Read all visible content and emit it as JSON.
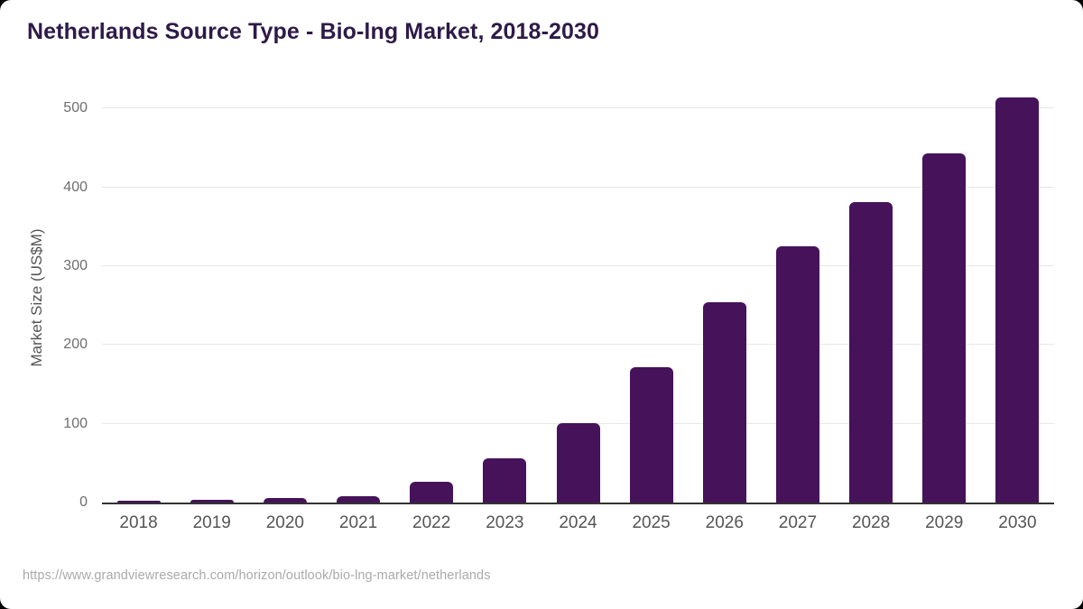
{
  "page": {
    "background_color": "#000000",
    "card_color": "#ffffff"
  },
  "chart_data": {
    "type": "bar",
    "title": "Netherlands Source Type - Bio-lng Market, 2018-2030",
    "ylabel": "Market Size (US$M)",
    "xlabel": "",
    "categories": [
      "2018",
      "2019",
      "2020",
      "2021",
      "2022",
      "2023",
      "2024",
      "2025",
      "2026",
      "2027",
      "2028",
      "2029",
      "2030"
    ],
    "values": [
      2,
      4,
      6,
      8,
      26,
      56,
      101,
      172,
      254,
      325,
      382,
      443,
      514
    ],
    "yticks": [
      0,
      100,
      200,
      300,
      400,
      500
    ],
    "ylim": [
      0,
      520
    ],
    "grid": true,
    "legend_position": "none",
    "bar_color": "#461259",
    "title_color": "#2E1A47",
    "gridline_color": "#e7e7e7",
    "axis_line_color": "#333333",
    "tick_label_color": "#6e6e6e",
    "source": "https://www.grandviewresearch.com/horizon/outlook/bio-lng-market/netherlands"
  }
}
